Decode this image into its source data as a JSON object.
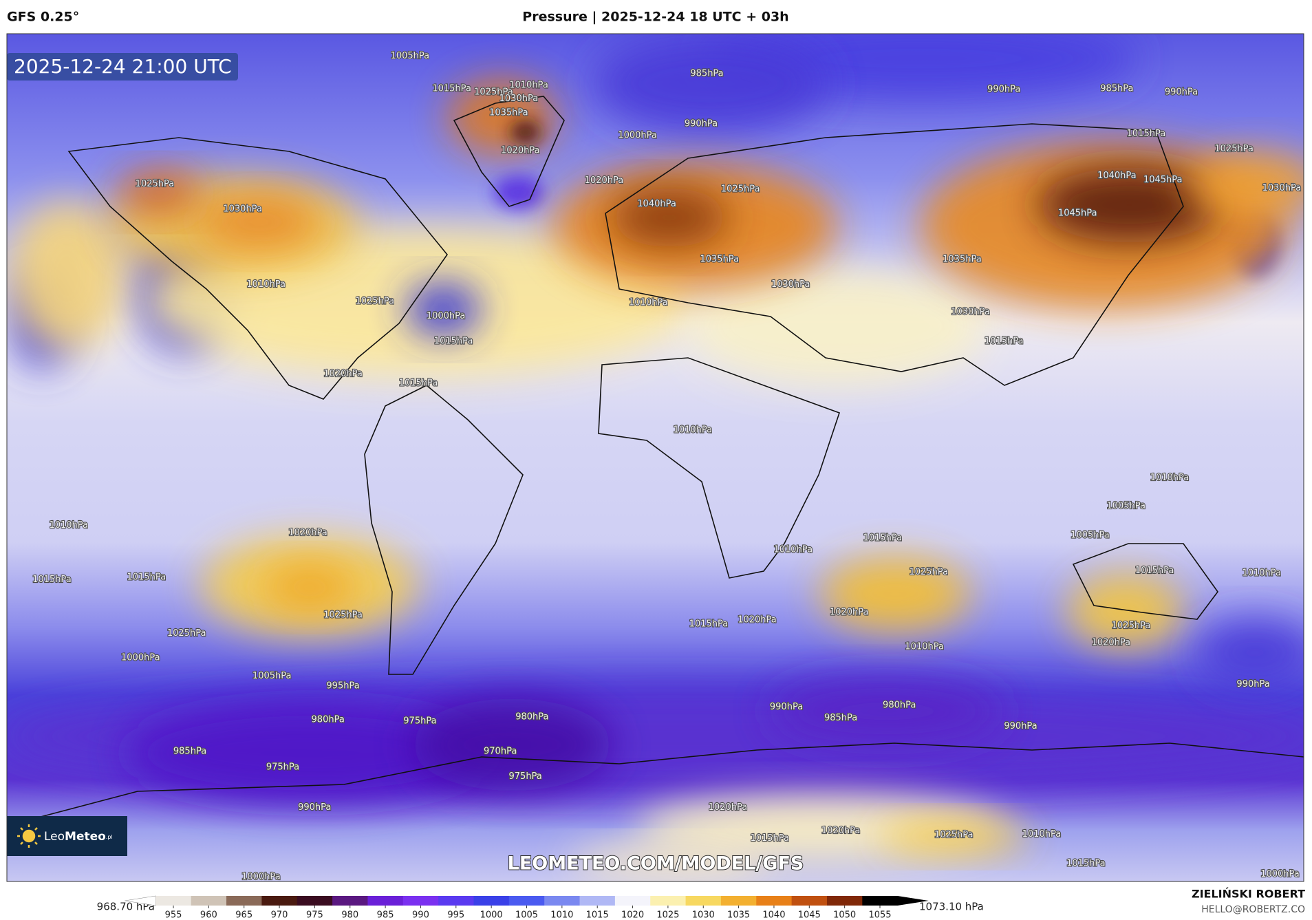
{
  "header": {
    "left": "GFS 0.25°",
    "title": "Pressure | 2025-12-24 18 UTC + 03h"
  },
  "map": {
    "valid_time": "2025-12-24 21:00 UTC",
    "watermark": "LEOMETEO.COM/MODEL/GFS",
    "isobar_labels": [
      "1005hPa",
      "1015hPa",
      "1025hPa",
      "1030hPa",
      "1035hPa",
      "1010hPa",
      "1020hPa",
      "985hPa",
      "990hPa",
      "985hPa",
      "990hPa",
      "1000hPa",
      "990hPa",
      "1015hPa",
      "1025hPa",
      "1030hPa",
      "1040hPa",
      "1025hPa",
      "1020hPa",
      "1045hPa",
      "1040hPa",
      "1045hPa",
      "1035hPa",
      "1030hPa",
      "1010hPa",
      "1035hPa",
      "1030hPa",
      "1015hPa",
      "1030hPa",
      "1025hPa",
      "1010hPa",
      "1025hPa",
      "1000hPa",
      "1015hPa",
      "1020hPa",
      "1015hPa",
      "1010hPa",
      "1010hPa",
      "1005hPa",
      "1005hPa",
      "1010hPa",
      "1020hPa",
      "1015hPa",
      "1015hPa",
      "1025hPa",
      "1025hPa",
      "1015hPa",
      "1010hPa",
      "1025hPa",
      "1020hPa",
      "1015hPa",
      "1020hPa",
      "1010hPa",
      "1015hPa",
      "1010hPa",
      "1025hPa",
      "1020hPa",
      "1000hPa",
      "1005hPa",
      "995hPa",
      "990hPa",
      "985hPa",
      "980hPa",
      "990hPa",
      "990hPa",
      "980hPa",
      "975hPa",
      "980hPa",
      "970hPa",
      "975hPa",
      "985hPa",
      "975hPa",
      "990hPa",
      "1020hPa",
      "1015hPa",
      "1020hPa",
      "1025hPa",
      "1010hPa",
      "1015hPa",
      "1000hPa",
      "1000hPa"
    ]
  },
  "logo": {
    "light": "Leo",
    "bold": "Meteo",
    "suffix": ".pl"
  },
  "colorbar": {
    "min_label": "968.70 hPa",
    "max_label": "1073.10 hPa",
    "ticks": [
      955,
      960,
      965,
      970,
      975,
      980,
      985,
      990,
      995,
      1000,
      1005,
      1010,
      1015,
      1020,
      1025,
      1030,
      1035,
      1040,
      1045,
      1050,
      1055
    ],
    "colors": [
      "#ece8e2",
      "#cfc3b6",
      "#8a6a58",
      "#4a1a10",
      "#3a0c20",
      "#5a1880",
      "#6a20d8",
      "#7a30f0",
      "#5a3af0",
      "#3a40e8",
      "#4a5af0",
      "#7a88f0",
      "#b0b8f5",
      "#f4f4fb",
      "#fbf0b0",
      "#f7d860",
      "#f3b030",
      "#e88018",
      "#c05010",
      "#802808",
      "#000000"
    ]
  },
  "footer": {
    "author": "ZIELIŃSKI ROBERT",
    "email": "HELLO@ROBERTZ.CO"
  }
}
